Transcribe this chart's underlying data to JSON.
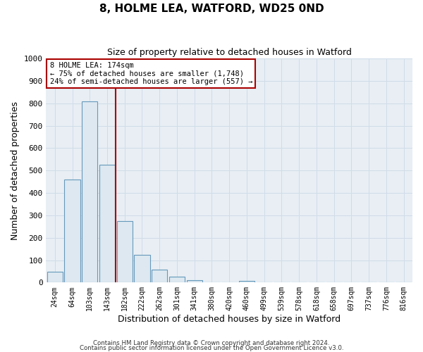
{
  "title": "8, HOLME LEA, WATFORD, WD25 0ND",
  "subtitle": "Size of property relative to detached houses in Watford",
  "xlabel": "Distribution of detached houses by size in Watford",
  "ylabel": "Number of detached properties",
  "bar_labels": [
    "24sqm",
    "64sqm",
    "103sqm",
    "143sqm",
    "182sqm",
    "222sqm",
    "262sqm",
    "301sqm",
    "341sqm",
    "380sqm",
    "420sqm",
    "460sqm",
    "499sqm",
    "539sqm",
    "578sqm",
    "618sqm",
    "658sqm",
    "697sqm",
    "737sqm",
    "776sqm",
    "816sqm"
  ],
  "bar_values": [
    47,
    460,
    810,
    525,
    275,
    125,
    58,
    25,
    12,
    0,
    0,
    8,
    0,
    0,
    0,
    0,
    0,
    0,
    0,
    0,
    0
  ],
  "bar_color": "#dde8f0",
  "bar_edge_color": "#6699bb",
  "vline_color": "#aa0000",
  "ylim": [
    0,
    1000
  ],
  "yticks": [
    0,
    100,
    200,
    300,
    400,
    500,
    600,
    700,
    800,
    900,
    1000
  ],
  "annotation_line1": "8 HOLME LEA: 174sqm",
  "annotation_line2": "← 75% of detached houses are smaller (1,748)",
  "annotation_line3": "24% of semi-detached houses are larger (557) →",
  "annotation_box_edge_color": "#aa0000",
  "annotation_box_bg": "#ffffff",
  "footer_line1": "Contains HM Land Registry data © Crown copyright and database right 2024.",
  "footer_line2": "Contains public sector information licensed under the Open Government Licence v3.0.",
  "grid_color": "#d0dce8",
  "background_color": "#e8eef4"
}
